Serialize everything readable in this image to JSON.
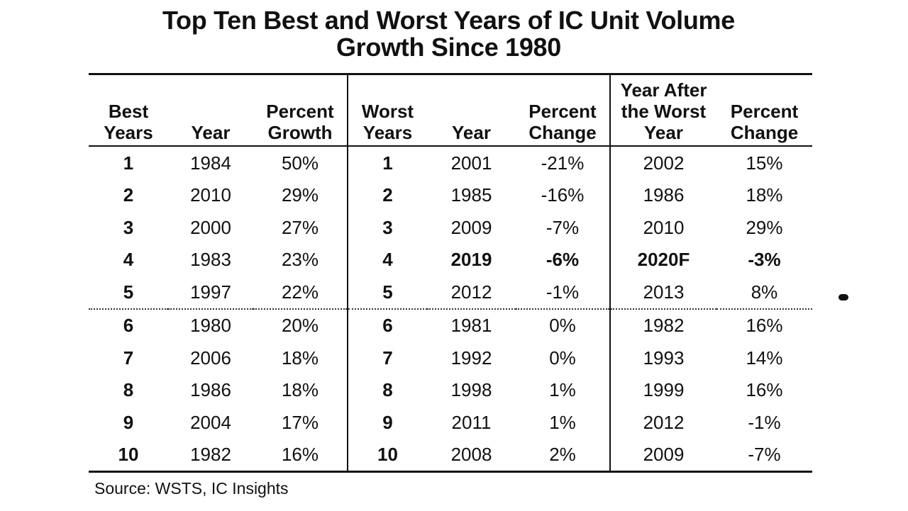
{
  "title": {
    "line1": "Top Ten Best and Worst Years of IC Unit Volume",
    "line2": "Growth Since 1980"
  },
  "headers": {
    "best_rank": [
      "Best",
      "Years"
    ],
    "best_year": [
      "Year"
    ],
    "best_pct": [
      "Percent",
      "Growth"
    ],
    "worst_rank": [
      "Worst",
      "Years"
    ],
    "worst_year": [
      "Year"
    ],
    "worst_pct": [
      "Percent",
      "Change"
    ],
    "after_year": [
      "Year After",
      "the Worst",
      "Year"
    ],
    "after_pct": [
      "Percent",
      "Change"
    ]
  },
  "rows": [
    {
      "best_rank": "1",
      "best_year": "1984",
      "best_pct": "50%",
      "worst_rank": "1",
      "worst_year": "2001",
      "worst_pct": "-21%",
      "after_year": "2002",
      "after_pct": "15%"
    },
    {
      "best_rank": "2",
      "best_year": "2010",
      "best_pct": "29%",
      "worst_rank": "2",
      "worst_year": "1985",
      "worst_pct": "-16%",
      "after_year": "1986",
      "after_pct": "18%"
    },
    {
      "best_rank": "3",
      "best_year": "2000",
      "best_pct": "27%",
      "worst_rank": "3",
      "worst_year": "2009",
      "worst_pct": "-7%",
      "after_year": "2010",
      "after_pct": "29%"
    },
    {
      "best_rank": "4",
      "best_year": "1983",
      "best_pct": "23%",
      "worst_rank": "4",
      "worst_year": "2019",
      "worst_pct": "-6%",
      "after_year": "2020F",
      "after_pct": "-3%",
      "highlight": true
    },
    {
      "best_rank": "5",
      "best_year": "1997",
      "best_pct": "22%",
      "worst_rank": "5",
      "worst_year": "2012",
      "worst_pct": "-1%",
      "after_year": "2013",
      "after_pct": "8%"
    },
    {
      "best_rank": "6",
      "best_year": "1980",
      "best_pct": "20%",
      "worst_rank": "6",
      "worst_year": "1981",
      "worst_pct": "0%",
      "after_year": "1982",
      "after_pct": "16%"
    },
    {
      "best_rank": "7",
      "best_year": "2006",
      "best_pct": "18%",
      "worst_rank": "7",
      "worst_year": "1992",
      "worst_pct": "0%",
      "after_year": "1993",
      "after_pct": "14%"
    },
    {
      "best_rank": "8",
      "best_year": "1986",
      "best_pct": "18%",
      "worst_rank": "8",
      "worst_year": "1998",
      "worst_pct": "1%",
      "after_year": "1999",
      "after_pct": "16%"
    },
    {
      "best_rank": "9",
      "best_year": "2004",
      "best_pct": "17%",
      "worst_rank": "9",
      "worst_year": "2011",
      "worst_pct": "1%",
      "after_year": "2012",
      "after_pct": "-1%"
    },
    {
      "best_rank": "10",
      "best_year": "1982",
      "best_pct": "16%",
      "worst_rank": "10",
      "worst_year": "2008",
      "worst_pct": "2%",
      "after_year": "2009",
      "after_pct": "-7%"
    }
  ],
  "source": "Source: WSTS, IC Insights"
}
